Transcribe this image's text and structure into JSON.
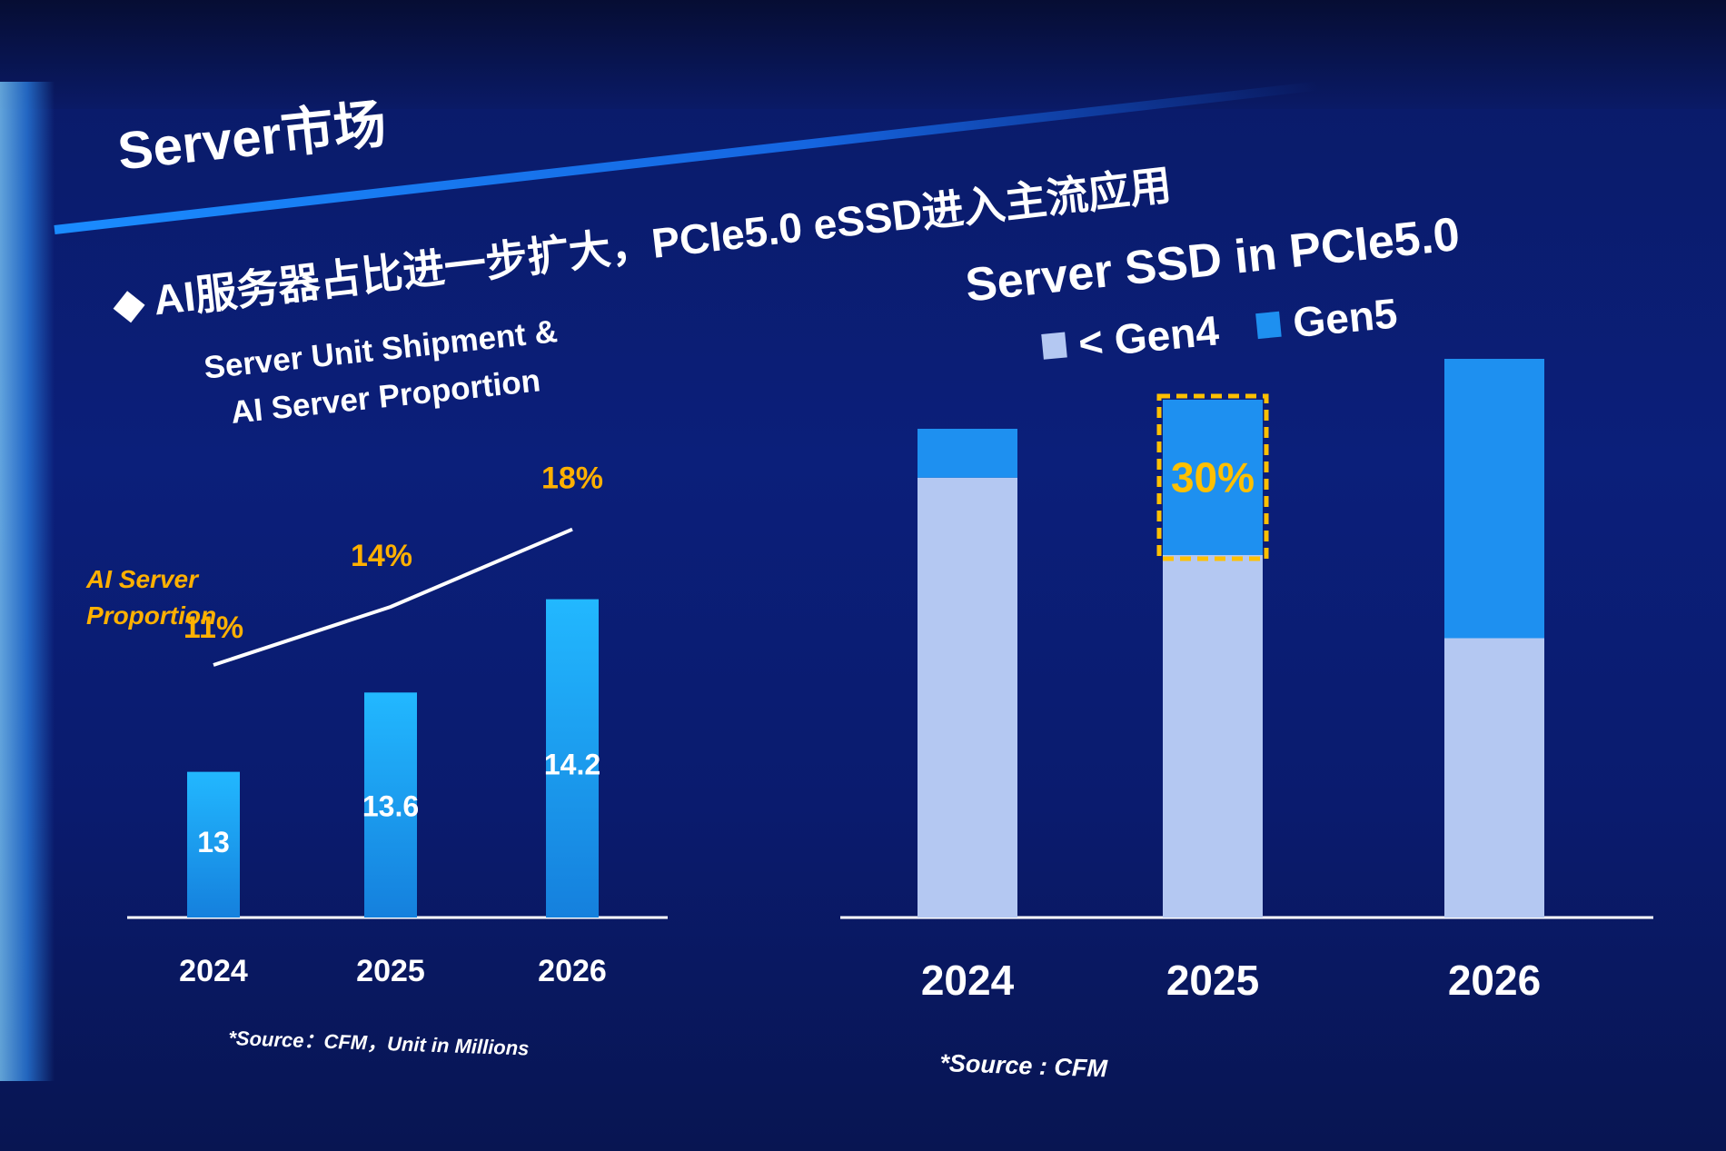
{
  "slide": {
    "title": "Server市场",
    "subtitle_bullet": "◆",
    "subtitle": "AI服务器占比进一步扩大，PCIe5.0 eSSD进入主流应用"
  },
  "colors": {
    "background": "#0a1b6e",
    "bar_blue": "#1aa3f0",
    "gen4": "#b4c8f2",
    "gen5": "#1e90f0",
    "highlight": "#ffc000",
    "proportion_label": "#ffb000"
  },
  "chart_data": [
    {
      "type": "bar",
      "title_lines": [
        "Server Unit Shipment &",
        "AI Server Proportion"
      ],
      "categories": [
        "2024",
        "2025",
        "2026"
      ],
      "series": [
        {
          "values": [
            13,
            13.6,
            14.2
          ],
          "value_labels": [
            "13",
            "13.6",
            "14.2"
          ]
        }
      ],
      "line_series": {
        "name_lines": [
          "AI Server",
          "Proportion"
        ],
        "values": [
          11,
          14,
          18
        ],
        "value_labels": [
          "11%",
          "14%",
          "18%"
        ]
      },
      "ylim": [
        0,
        16
      ],
      "xlabel": "",
      "ylabel": "",
      "grid": false,
      "source": "*Source：CFM，Unit in Millions"
    },
    {
      "type": "bar",
      "stacked": true,
      "title": "Server SSD in PCIe5.0",
      "categories": [
        "2024",
        "2025",
        "2026"
      ],
      "series": [
        {
          "name": "< Gen4",
          "values": [
            90,
            70,
            50
          ]
        },
        {
          "name": "Gen5",
          "values": [
            10,
            30,
            50
          ]
        }
      ],
      "annotation": {
        "category": "2025",
        "series": "Gen5",
        "label": "30%"
      },
      "ylim": [
        0,
        100
      ],
      "legend_position": "top",
      "grid": false,
      "source": "*Source : CFM"
    }
  ]
}
